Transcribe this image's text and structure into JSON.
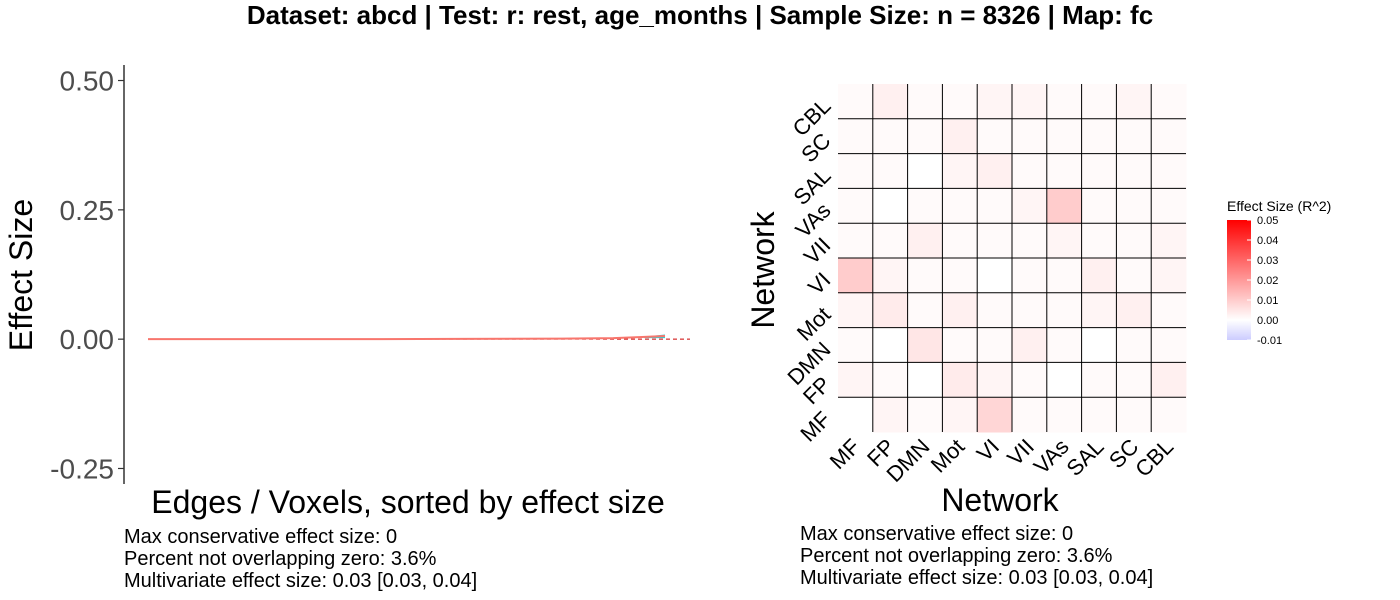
{
  "title": "Dataset: abcd   |  Test: r: rest, age_months   |   Sample Size: n = 8326   |  Map: fc",
  "colors": {
    "line": "#f8766d",
    "ci_band": "#00bfc4",
    "zero_line": "#cc0000",
    "heat_high": "#ff0000",
    "heat_mid": "#ffffff",
    "heat_low": "#ccccff",
    "grid": "#000000"
  },
  "chart_data": [
    {
      "type": "line",
      "xlabel": "Edges / Voxels, sorted by effect size",
      "ylabel": "Effect Size",
      "ylim": [
        -0.28,
        0.53
      ],
      "y_ticks": [
        {
          "value": 0.5,
          "label": "0.50"
        },
        {
          "value": 0.25,
          "label": "0.25"
        },
        {
          "value": 0.0,
          "label": "0.00"
        },
        {
          "value": -0.25,
          "label": "-0.25"
        }
      ],
      "series": [
        {
          "x": [
            0,
            0.2,
            0.4,
            0.6,
            0.8,
            0.9,
            0.95,
            1.0
          ],
          "values": [
            0,
            0,
            0,
            0.0005,
            0.001,
            0.002,
            0.004,
            0.006
          ]
        }
      ],
      "ci_band": {
        "x": [
          0.96,
          1.0
        ],
        "lower": [
          0.002,
          0.002
        ],
        "upper": [
          0.005,
          0.009
        ]
      },
      "zero_line": true,
      "notes": [
        "Max conservative effect size: 0",
        "Percent not overlapping zero: 3.6%",
        "Multivariate effect size: 0.03 [0.03, 0.04]"
      ]
    },
    {
      "type": "heatmap",
      "xlabel": "Network",
      "ylabel": "Network",
      "x_categories": [
        "MF",
        "FP",
        "DMN",
        "Mot",
        "VI",
        "VII",
        "VAs",
        "SAL",
        "SC",
        "CBL"
      ],
      "y_categories": [
        "MF",
        "FP",
        "DMN",
        "Mot",
        "VI",
        "VII",
        "VAs",
        "SAL",
        "SC",
        "CBL"
      ],
      "values": [
        [
          0.0,
          0.002,
          0.001,
          0.002,
          0.008,
          0.001,
          0.001,
          0.001,
          0.001,
          0.001
        ],
        [
          0.002,
          0.001,
          0.0,
          0.004,
          0.002,
          0.001,
          0.0,
          0.001,
          0.001,
          0.003
        ],
        [
          0.001,
          0.0,
          0.005,
          0.001,
          0.001,
          0.003,
          0.001,
          0.0,
          0.001,
          0.001
        ],
        [
          0.002,
          0.004,
          0.001,
          0.003,
          0.001,
          0.001,
          0.001,
          0.002,
          0.003,
          0.001
        ],
        [
          0.01,
          0.002,
          0.001,
          0.001,
          0.0,
          0.001,
          0.001,
          0.003,
          0.001,
          0.002
        ],
        [
          0.001,
          0.001,
          0.003,
          0.001,
          0.001,
          0.001,
          0.002,
          0.001,
          0.001,
          0.002
        ],
        [
          0.001,
          0.0,
          0.001,
          0.001,
          0.001,
          0.002,
          0.01,
          0.001,
          0.001,
          0.001
        ],
        [
          0.001,
          0.001,
          0.0,
          0.002,
          0.003,
          0.001,
          0.001,
          0.001,
          0.001,
          0.001
        ],
        [
          0.001,
          0.001,
          0.001,
          0.003,
          0.001,
          0.001,
          0.001,
          0.001,
          0.001,
          0.001
        ],
        [
          0.001,
          0.003,
          0.001,
          0.001,
          0.002,
          0.002,
          0.001,
          0.001,
          0.002,
          0.001
        ]
      ],
      "legend": {
        "title": "Effect Size (R^2)",
        "min": -0.01,
        "max": 0.05,
        "ticks": [
          {
            "value": 0.05,
            "label": "0.05"
          },
          {
            "value": 0.04,
            "label": "0.04"
          },
          {
            "value": 0.03,
            "label": "0.03"
          },
          {
            "value": 0.02,
            "label": "0.02"
          },
          {
            "value": 0.01,
            "label": "0.01"
          },
          {
            "value": 0.0,
            "label": "0.00"
          },
          {
            "value": -0.01,
            "label": "-0.01"
          }
        ]
      },
      "notes": [
        "Max conservative effect size: 0",
        "Percent not overlapping zero: 3.6%",
        "Multivariate effect size: 0.03 [0.03, 0.04]"
      ]
    }
  ]
}
